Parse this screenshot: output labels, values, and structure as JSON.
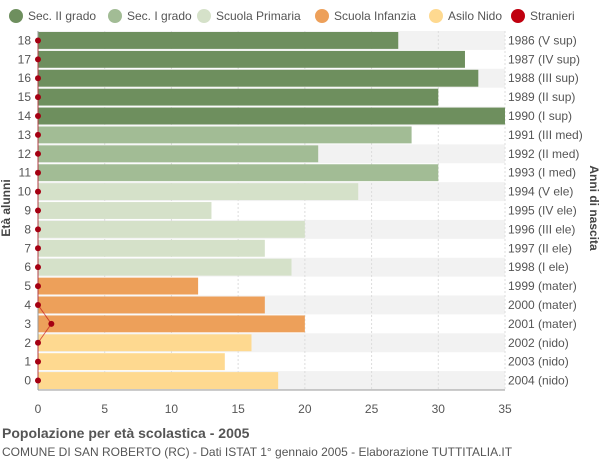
{
  "footer": {
    "title": "Popolazione per età scolastica - 2005",
    "subtitle": "COMUNE DI SAN ROBERTO (RC) - Dati ISTAT 1° gennaio 2005 - Elaborazione TUTTITALIA.IT"
  },
  "chart_data": {
    "type": "bar",
    "orientation": "horizontal",
    "title": "Popolazione per età scolastica - 2005",
    "ylabel": "Età alunni",
    "y2label": "Anni di nascita",
    "xlim": [
      0,
      35
    ],
    "xticks": [
      0,
      5,
      10,
      15,
      20,
      25,
      30,
      35
    ],
    "grid": true,
    "legend_position": "top",
    "legend": [
      {
        "name": "Sec. II grado",
        "color": "#6e8f5e"
      },
      {
        "name": "Sec. I grado",
        "color": "#a2bc95"
      },
      {
        "name": "Scuola Primaria",
        "color": "#d5e1c9"
      },
      {
        "name": "Scuola Infanzia",
        "color": "#eda05a"
      },
      {
        "name": "Asilo Nido",
        "color": "#fed990"
      },
      {
        "name": "Stranieri",
        "color": "#c0000f"
      }
    ],
    "ages": [
      18,
      17,
      16,
      15,
      14,
      13,
      12,
      11,
      10,
      9,
      8,
      7,
      6,
      5,
      4,
      3,
      2,
      1,
      0
    ],
    "birth_years": [
      "1986 (V sup)",
      "1987 (IV sup)",
      "1988 (III sup)",
      "1989 (II sup)",
      "1990 (I sup)",
      "1991 (III med)",
      "1992 (II med)",
      "1993 (I med)",
      "1994 (V ele)",
      "1995 (IV ele)",
      "1996 (III ele)",
      "1997 (II ele)",
      "1998 (I ele)",
      "1999 (mater)",
      "2000 (mater)",
      "2001 (mater)",
      "2002 (nido)",
      "2003 (nido)",
      "2004 (nido)"
    ],
    "values": [
      27,
      32,
      33,
      30,
      35,
      28,
      21,
      30,
      24,
      13,
      20,
      17,
      19,
      12,
      17,
      20,
      16,
      14,
      18
    ],
    "groups": [
      0,
      0,
      0,
      0,
      0,
      1,
      1,
      1,
      2,
      2,
      2,
      2,
      2,
      3,
      3,
      3,
      4,
      4,
      4
    ],
    "stranieri": [
      0,
      0,
      0,
      0,
      0,
      0,
      0,
      0,
      0,
      0,
      0,
      0,
      0,
      0,
      0,
      1,
      0,
      0,
      0
    ]
  }
}
